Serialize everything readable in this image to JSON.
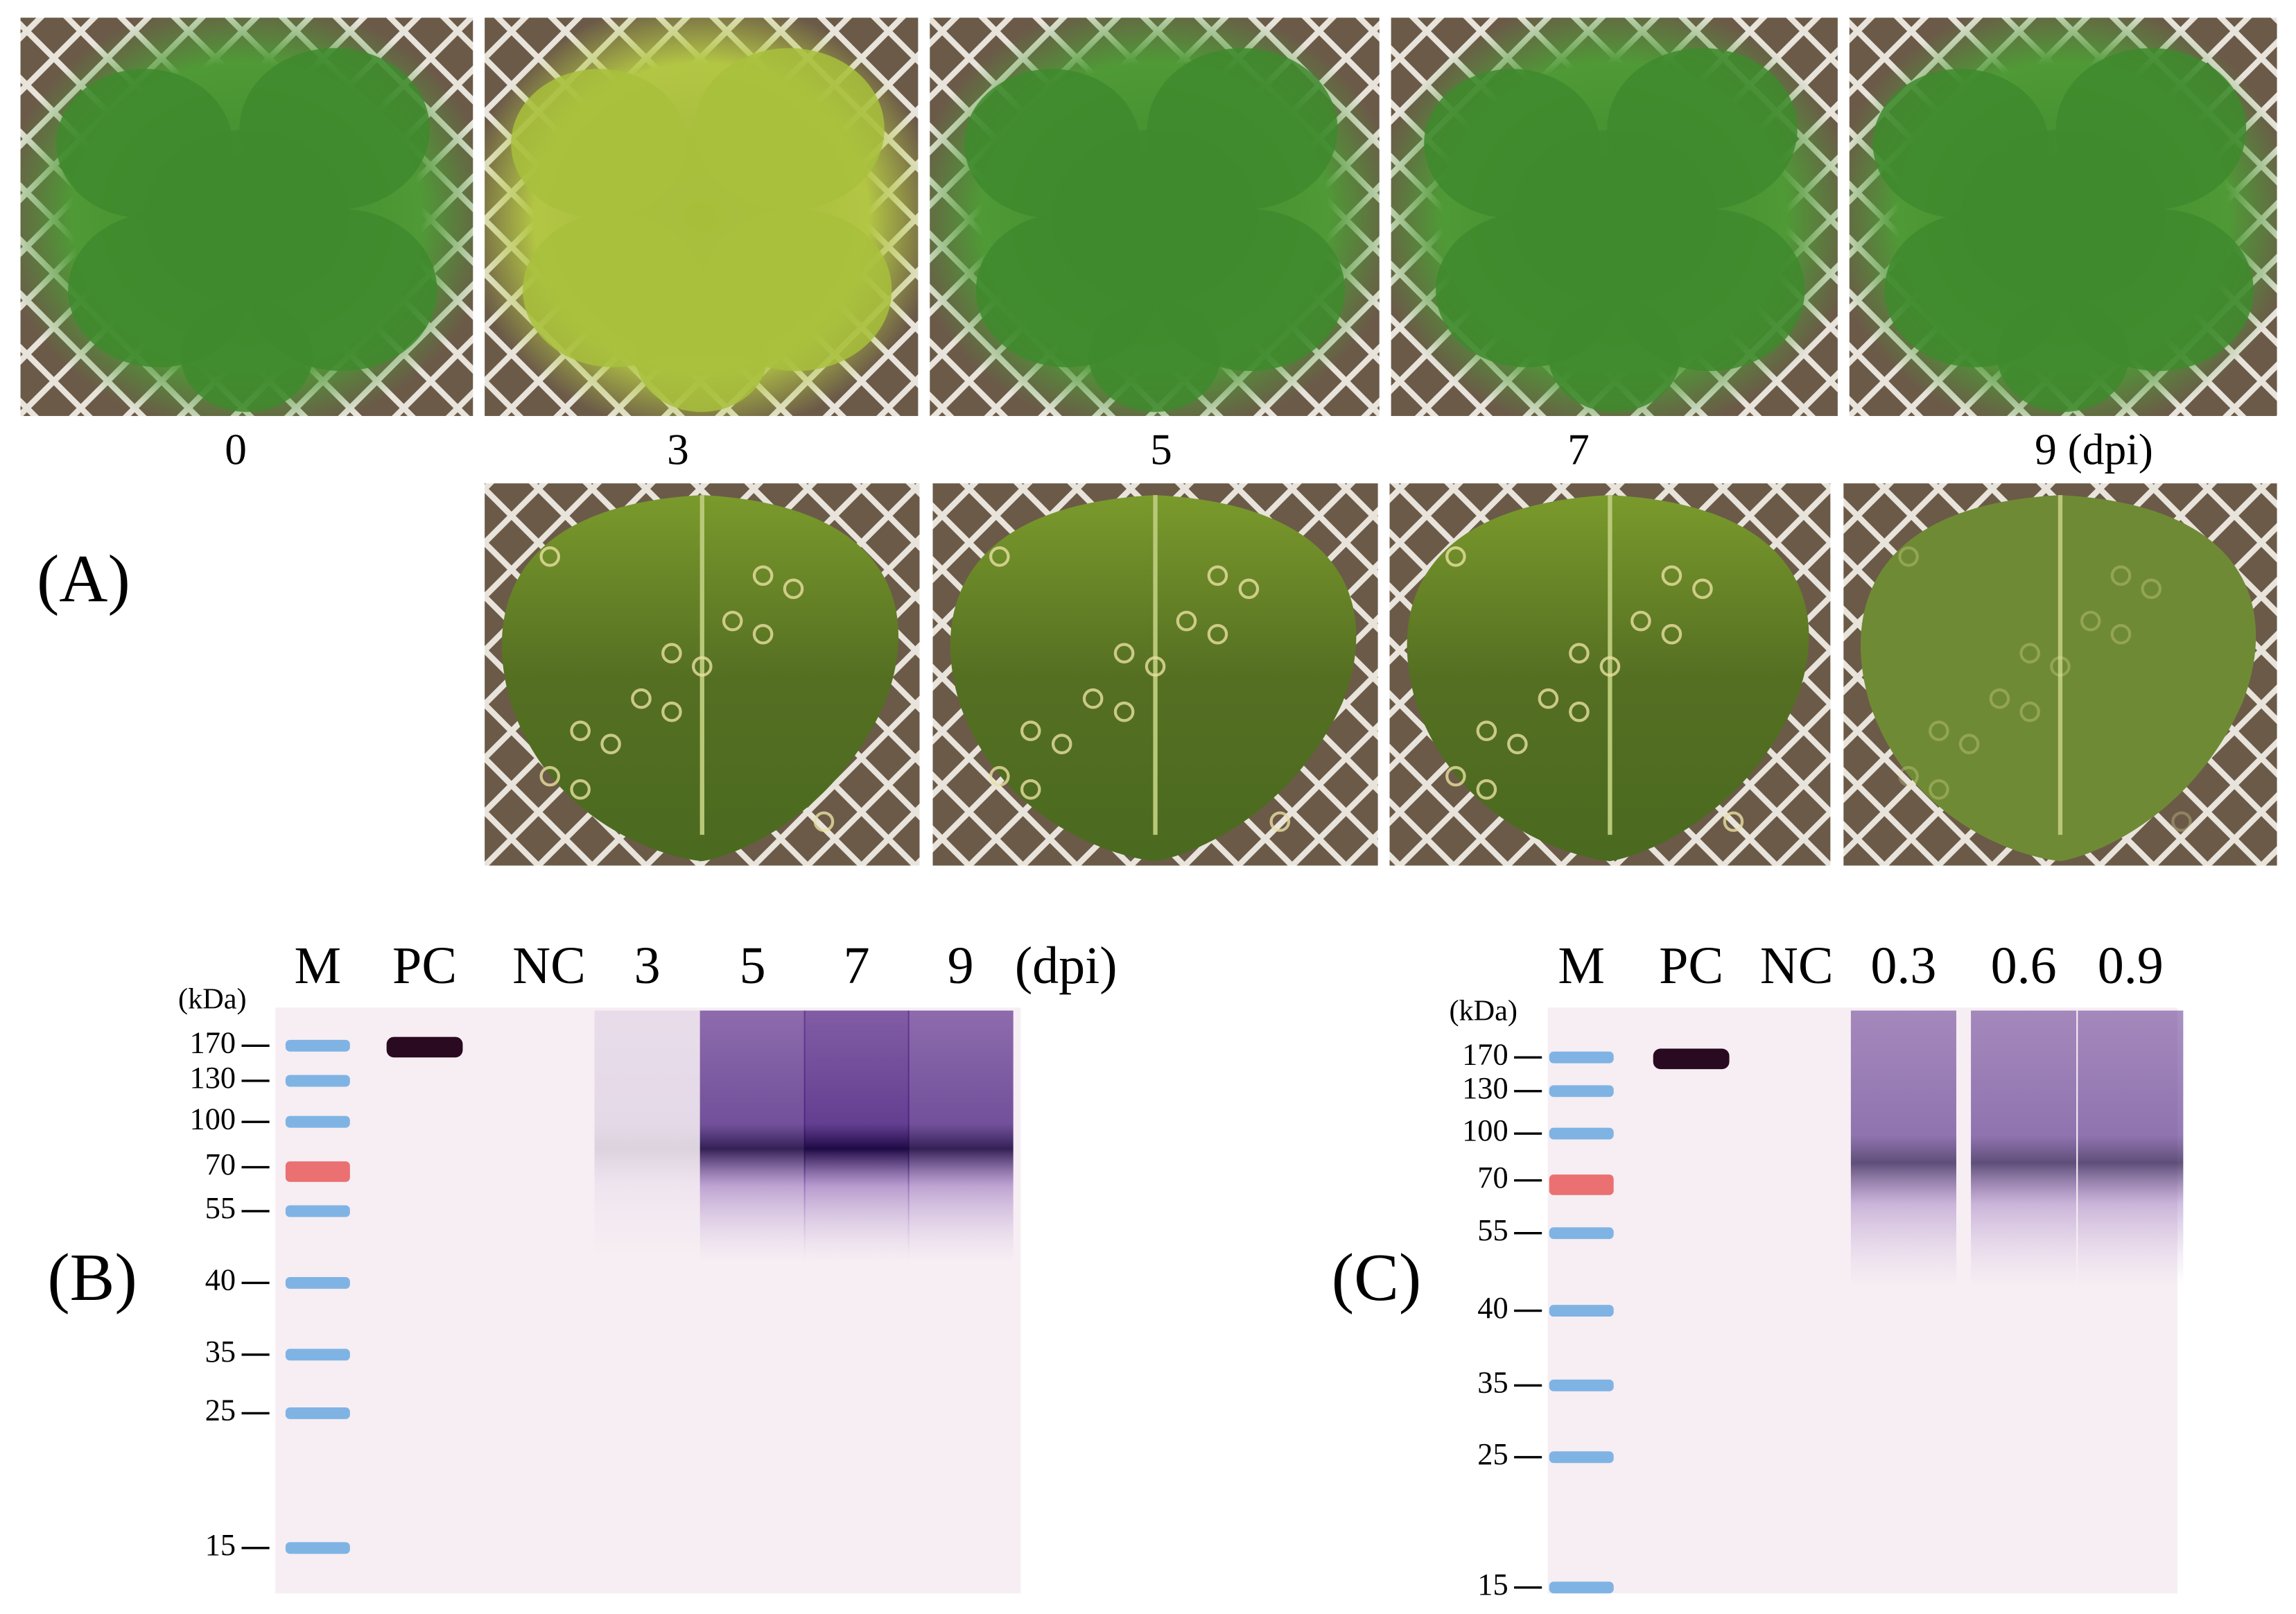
{
  "panel_a": {
    "label": "(A)",
    "day_labels": [
      "0",
      "3",
      "5",
      "7",
      "9 (dpi)"
    ]
  },
  "panel_b": {
    "label": "(B)",
    "unit": "(kDa)",
    "lanes": [
      "M",
      "PC",
      "NC",
      "3",
      "5",
      "7",
      "9"
    ],
    "lane_unit": "(dpi)",
    "markers": [
      170,
      130,
      100,
      70,
      55,
      40,
      35,
      25,
      15
    ]
  },
  "panel_c": {
    "label": "(C)",
    "unit": "(kDa)",
    "lanes": [
      "M",
      "PC",
      "NC",
      "0.3",
      "0.6",
      "0.9"
    ],
    "markers": [
      170,
      130,
      100,
      70,
      55,
      40,
      35,
      25,
      15
    ]
  }
}
